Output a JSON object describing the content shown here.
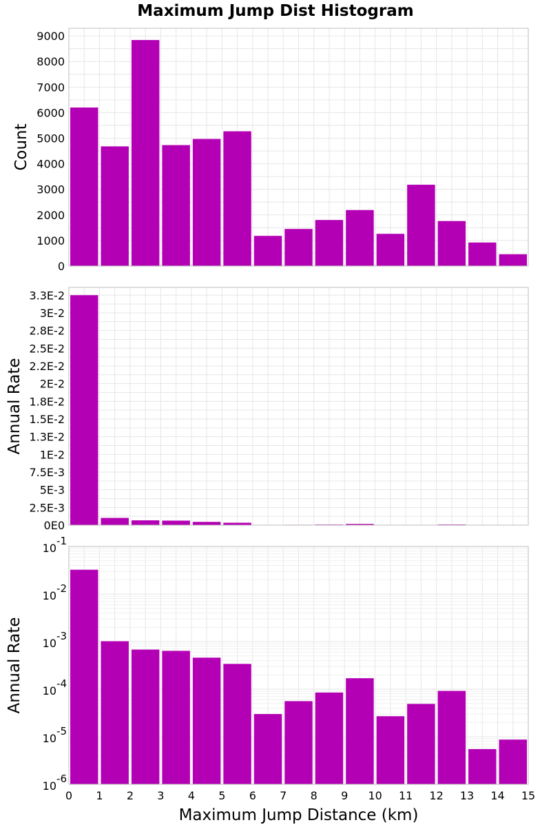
{
  "title": "Maximum Jump Dist Histogram",
  "chart_data": [
    {
      "type": "bar",
      "panel": "count",
      "x_bin_starts": [
        0,
        1,
        2,
        3,
        4,
        5,
        6,
        7,
        8,
        9,
        10,
        11,
        12,
        13,
        14
      ],
      "bin_width": 1,
      "values": [
        6200,
        4680,
        8840,
        4730,
        4970,
        5270,
        1180,
        1450,
        1800,
        2190,
        1260,
        3180,
        1760,
        920,
        460
      ],
      "ylabel": "Count",
      "ylim": [
        0,
        9300
      ],
      "yticks": [
        0,
        1000,
        2000,
        3000,
        4000,
        5000,
        6000,
        7000,
        8000,
        9000
      ],
      "ytick_labels": [
        "0",
        "1000",
        "2000",
        "3000",
        "4000",
        "5000",
        "6000",
        "7000",
        "8000",
        "9000"
      ],
      "xlim": [
        0,
        15
      ],
      "color": "#b400b4",
      "grid": true
    },
    {
      "type": "bar",
      "panel": "annual-rate-linear",
      "x_bin_starts": [
        0,
        1,
        2,
        3,
        4,
        5,
        6,
        7,
        8,
        9,
        10,
        11,
        12,
        13,
        14
      ],
      "bin_width": 1,
      "values": [
        0.0325,
        0.00102,
        0.00068,
        0.00064,
        0.00046,
        0.00034,
        3e-05,
        5.6e-05,
        8.5e-05,
        0.00017,
        2.7e-05,
        4.9e-05,
        9.2e-05,
        5.5e-06,
        8.7e-06
      ],
      "ylabel": "Annual Rate",
      "ylim": [
        0,
        0.0336
      ],
      "yticks": [
        0,
        0.0025,
        0.005,
        0.0075,
        0.01,
        0.0125,
        0.015,
        0.0175,
        0.02,
        0.0225,
        0.025,
        0.0275,
        0.03,
        0.0325
      ],
      "ytick_labels": [
        "0E0",
        "2.5E-3",
        "5E-3",
        "7.5E-3",
        "1E-2",
        "1.3E-2",
        "1.5E-2",
        "1.8E-2",
        "2E-2",
        "2.2E-2",
        "2.5E-2",
        "2.8E-2",
        "3E-2",
        "3.3E-2"
      ],
      "xlim": [
        0,
        15
      ],
      "color": "#b400b4",
      "grid": true
    },
    {
      "type": "bar",
      "panel": "annual-rate-log",
      "scale": "log",
      "x_bin_starts": [
        0,
        1,
        2,
        3,
        4,
        5,
        6,
        7,
        8,
        9,
        10,
        11,
        12,
        13,
        14
      ],
      "bin_width": 1,
      "values": [
        0.0325,
        0.00102,
        0.00068,
        0.00064,
        0.00046,
        0.00034,
        3e-05,
        5.6e-05,
        8.5e-05,
        0.00017,
        2.7e-05,
        4.9e-05,
        9.2e-05,
        5.5e-06,
        8.7e-06
      ],
      "ylabel": "Annual Rate",
      "ylim_exponents": [
        -6,
        -1
      ],
      "ytick_bases": [
        "10",
        "10",
        "10",
        "10",
        "10",
        "10"
      ],
      "ytick_exponents": [
        "-6",
        "-5",
        "-4",
        "-3",
        "-2",
        "-1"
      ],
      "xlabel": "Maximum Jump Distance (km)",
      "xticks": [
        "0",
        "1",
        "2",
        "3",
        "4",
        "5",
        "6",
        "7",
        "8",
        "9",
        "10",
        "11",
        "12",
        "13",
        "14",
        "15"
      ],
      "xlim": [
        0,
        15
      ],
      "color": "#b400b4",
      "grid": true
    }
  ]
}
